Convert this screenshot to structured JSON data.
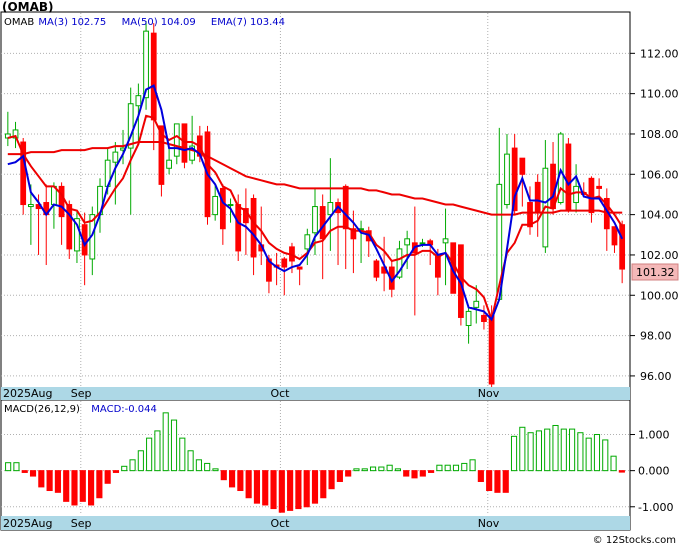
{
  "ticker_title": "(OMAB)",
  "credit": "© 12Stocks.com",
  "legend": [
    {
      "label": "OMAB",
      "value": "",
      "color": "#000000"
    },
    {
      "label": "MA(3)",
      "value": "102.75",
      "color": "#0000cc"
    },
    {
      "label": "MA(50)",
      "value": "104.09",
      "color": "#0000cc"
    },
    {
      "label": "EMA(7)",
      "value": "103.44",
      "color": "#0000cc"
    }
  ],
  "last_price_label": "101.32",
  "macd_legend": [
    {
      "label": "MACD(26,12,9)",
      "color": "#000000"
    },
    {
      "label": "MACD:-0.044",
      "color": "#0000cc"
    }
  ],
  "date_labels": [
    "2025Aug",
    "Sep",
    "Oct",
    "Nov"
  ],
  "colors": {
    "up": "#00aa00",
    "down": "#ff0000",
    "ma3": "#0000dd",
    "ema7": "#ee0000",
    "ma50": "#ee0000",
    "band": "#add8e6",
    "grid": "#b0b0b0"
  },
  "chart_data": [
    {
      "type": "candlestick",
      "ylim": [
        95.5,
        114
      ],
      "yticks": [
        96,
        98,
        100,
        102,
        104,
        106,
        108,
        110,
        112
      ],
      "ytick_labels": [
        "96.00",
        "98.00",
        "100.00",
        "102.00",
        "104.00",
        "106.00",
        "108.00",
        "110.00",
        "112.00"
      ],
      "candles": [
        [
          107.8,
          108.0,
          109.1,
          107.4
        ],
        [
          107.8,
          108.2,
          108.6,
          107.3
        ],
        [
          107.6,
          104.5,
          107.8,
          104.0
        ],
        [
          104.4,
          104.5,
          105.5,
          102.5
        ],
        [
          104.5,
          104.3,
          105.0,
          102.0
        ],
        [
          104.6,
          104.0,
          105.5,
          101.5
        ],
        [
          104.5,
          105.4,
          105.6,
          103.3
        ],
        [
          105.4,
          103.9,
          105.6,
          102.5
        ],
        [
          104.5,
          102.3,
          104.7,
          101.8
        ],
        [
          102.2,
          103.8,
          104.2,
          101.6
        ],
        [
          103.5,
          102.0,
          104.1,
          100.5
        ],
        [
          101.8,
          104.0,
          104.4,
          101.0
        ],
        [
          104.0,
          105.4,
          105.8,
          103.1
        ],
        [
          105.4,
          106.7,
          107.3,
          105.0
        ],
        [
          106.6,
          107.1,
          107.6,
          104.5
        ],
        [
          107.2,
          107.3,
          108.2,
          106.5
        ],
        [
          107.3,
          109.5,
          110.3,
          104.0
        ],
        [
          109.4,
          109.9,
          110.5,
          107.5
        ],
        [
          109.8,
          113.1,
          113.6,
          109.2
        ],
        [
          113.0,
          108.7,
          113.5,
          107.2
        ],
        [
          108.4,
          105.5,
          108.4,
          104.9
        ],
        [
          106.3,
          106.7,
          107.3,
          106.0
        ],
        [
          106.9,
          108.5,
          108.5,
          106.5
        ],
        [
          108.5,
          106.6,
          108.5,
          106.3
        ],
        [
          106.7,
          107.4,
          108.9,
          106.5
        ],
        [
          107.9,
          106.9,
          108.4,
          106.6
        ],
        [
          108.1,
          103.9,
          108.4,
          103.5
        ],
        [
          104.0,
          104.9,
          105.5,
          103.7
        ],
        [
          105.3,
          103.3,
          105.5,
          102.5
        ],
        [
          104.5,
          104.5,
          104.8,
          103.6
        ],
        [
          104.5,
          102.2,
          105.0,
          101.7
        ],
        [
          104.3,
          103.6,
          105.3,
          102.0
        ],
        [
          104.8,
          101.9,
          105.0,
          101.0
        ],
        [
          102.5,
          102.2,
          104.4,
          101.5
        ],
        [
          101.8,
          100.7,
          102.0,
          100.1
        ],
        [
          101.5,
          101.4,
          102.1,
          100.5
        ],
        [
          101.8,
          101.4,
          101.9,
          100.0
        ],
        [
          102.4,
          101.7,
          102.6,
          101.1
        ],
        [
          101.4,
          101.3,
          101.4,
          100.5
        ],
        [
          102.3,
          103.0,
          103.3,
          101.5
        ],
        [
          103.1,
          104.4,
          105.3,
          102.0
        ],
        [
          104.4,
          102.8,
          105.0,
          100.8
        ],
        [
          104.0,
          104.6,
          106.8,
          102.2
        ],
        [
          104.6,
          104.1,
          104.8,
          101.5
        ],
        [
          105.4,
          103.3,
          105.5,
          101.3
        ],
        [
          103.3,
          102.8,
          104.2,
          101.1
        ],
        [
          103.3,
          103.3,
          103.7,
          101.6
        ],
        [
          103.2,
          102.7,
          103.4,
          101.9
        ],
        [
          101.7,
          100.9,
          101.8,
          100.7
        ],
        [
          101.4,
          101.1,
          102.9,
          100.2
        ],
        [
          101.4,
          100.3,
          101.7,
          99.9
        ],
        [
          100.9,
          102.3,
          102.7,
          100.8
        ],
        [
          102.5,
          102.8,
          103.2,
          101.3
        ],
        [
          102.6,
          102.1,
          104.4,
          99.0
        ],
        [
          102.6,
          102.6,
          102.8,
          102.4
        ],
        [
          102.7,
          102.5,
          102.8,
          101.5
        ],
        [
          102.0,
          100.9,
          102.3,
          100.0
        ],
        [
          102.6,
          102.8,
          104.3,
          100.5
        ],
        [
          102.6,
          100.1,
          102.5,
          100.1
        ],
        [
          102.5,
          98.9,
          102.5,
          98.5
        ],
        [
          98.5,
          99.2,
          99.5,
          97.6
        ],
        [
          99.4,
          99.7,
          100.5,
          98.6
        ],
        [
          99.0,
          98.7,
          99.5,
          98.3
        ],
        [
          99.0,
          95.6,
          99.5,
          95.4
        ],
        [
          99.8,
          105.5,
          108.3,
          99.8
        ],
        [
          104.5,
          107.0,
          108.0,
          104.3
        ],
        [
          107.3,
          104.2,
          108.0,
          104.0
        ],
        [
          106.8,
          106.0,
          106.6,
          104.4
        ],
        [
          104.6,
          103.4,
          105.4,
          103.0
        ],
        [
          105.6,
          104.1,
          106.0,
          102.9
        ],
        [
          102.4,
          106.3,
          107.7,
          102.1
        ],
        [
          106.5,
          104.3,
          107.6,
          104.0
        ],
        [
          104.6,
          108.0,
          108.1,
          104.5
        ],
        [
          107.5,
          104.2,
          107.8,
          104.1
        ],
        [
          104.6,
          105.4,
          106.5,
          104.1
        ],
        [
          105.1,
          105.0,
          105.6,
          104.9
        ],
        [
          105.8,
          104.1,
          105.9,
          103.6
        ],
        [
          105.4,
          105.3,
          105.8,
          104.9
        ],
        [
          104.8,
          103.3,
          105.3,
          102.2
        ],
        [
          103.4,
          102.5,
          103.4,
          102.1
        ],
        [
          103.5,
          101.3,
          103.7,
          100.6
        ]
      ],
      "ma3": [
        106.5,
        106.6,
        106.9,
        105.1,
        104.6,
        104.0,
        104.5,
        104.4,
        104.0,
        103.5,
        102.5,
        103.0,
        104.0,
        105.4,
        106.3,
        107.0,
        107.9,
        108.9,
        110.2,
        110.4,
        109.2,
        107.3,
        107.3,
        107.2,
        107.3,
        107.0,
        106.0,
        105.5,
        104.6,
        104.3,
        103.6,
        103.4,
        103.0,
        102.5,
        101.7,
        101.4,
        101.2,
        101.4,
        101.5,
        102.0,
        102.9,
        103.4,
        103.9,
        104.4,
        104.0,
        103.6,
        103.1,
        103.0,
        102.3,
        101.5,
        100.7,
        101.2,
        101.8,
        102.4,
        102.5,
        102.5,
        102.0,
        102.1,
        101.2,
        100.6,
        99.4,
        99.3,
        99.2,
        98.8,
        99.8,
        102.3,
        104.9,
        105.8,
        104.7,
        104.7,
        104.6,
        104.9,
        106.2,
        105.5,
        105.9,
        104.9,
        104.8,
        104.8,
        104.2,
        103.6,
        102.8
      ],
      "ema7": [
        107.8,
        107.9,
        107.0,
        106.4,
        105.9,
        105.4,
        105.4,
        105.0,
        104.3,
        104.2,
        103.6,
        103.7,
        104.1,
        104.7,
        105.3,
        105.8,
        106.7,
        107.5,
        108.9,
        108.8,
        108.0,
        107.7,
        107.9,
        107.6,
        107.6,
        107.4,
        106.5,
        106.1,
        105.4,
        105.2,
        104.4,
        104.2,
        103.6,
        103.2,
        102.6,
        102.3,
        102.1,
        102.0,
        101.8,
        102.1,
        102.6,
        102.7,
        103.2,
        103.4,
        103.4,
        103.2,
        103.2,
        103.1,
        102.5,
        102.2,
        101.7,
        101.8,
        102.0,
        102.0,
        102.2,
        102.2,
        101.9,
        102.1,
        101.6,
        100.9,
        100.5,
        100.3,
        99.9,
        98.8,
        100.5,
        102.1,
        102.6,
        103.5,
        103.5,
        103.7,
        104.4,
        104.3,
        105.3,
        105.0,
        105.1,
        105.1,
        104.8,
        104.9,
        104.5,
        104.0,
        103.4
      ],
      "ma50": [
        107.0,
        107.0,
        107.0,
        107.1,
        107.1,
        107.1,
        107.1,
        107.2,
        107.2,
        107.2,
        107.2,
        107.3,
        107.3,
        107.3,
        107.4,
        107.4,
        107.5,
        107.6,
        107.6,
        107.6,
        107.6,
        107.5,
        107.4,
        107.3,
        107.2,
        107.1,
        106.9,
        106.7,
        106.5,
        106.3,
        106.1,
        105.9,
        105.8,
        105.7,
        105.6,
        105.5,
        105.5,
        105.4,
        105.3,
        105.3,
        105.3,
        105.3,
        105.3,
        105.3,
        105.3,
        105.3,
        105.3,
        105.2,
        105.2,
        105.1,
        105.0,
        105.0,
        104.9,
        104.8,
        104.8,
        104.7,
        104.6,
        104.5,
        104.5,
        104.4,
        104.3,
        104.2,
        104.1,
        104.0,
        104.0,
        104.0,
        104.0,
        104.1,
        104.1,
        104.1,
        104.1,
        104.1,
        104.2,
        104.2,
        104.2,
        104.2,
        104.2,
        104.2,
        104.1,
        104.1,
        104.1
      ]
    },
    {
      "type": "bar",
      "title": "MACD(26,12,9)",
      "ylim": [
        -1.2,
        1.9
      ],
      "yticks": [
        -1.0,
        0.0,
        1.0
      ],
      "ytick_labels": [
        "-1.000",
        "0.000",
        "1.000"
      ],
      "values": [
        0.22,
        0.22,
        -0.05,
        -0.15,
        -0.45,
        -0.55,
        -0.6,
        -0.85,
        -0.95,
        -0.85,
        -0.95,
        -0.75,
        -0.35,
        -0.05,
        0.12,
        0.3,
        0.55,
        0.9,
        1.1,
        1.6,
        1.4,
        0.9,
        0.55,
        0.3,
        0.2,
        0.05,
        -0.25,
        -0.45,
        -0.55,
        -0.75,
        -0.9,
        -0.95,
        -1.05,
        -1.15,
        -1.1,
        -1.05,
        -1.0,
        -0.9,
        -0.75,
        -0.5,
        -0.3,
        -0.15,
        0.05,
        0.05,
        0.1,
        0.1,
        0.15,
        0.05,
        -0.15,
        -0.2,
        -0.15,
        -0.05,
        0.15,
        0.15,
        0.15,
        0.2,
        0.3,
        -0.3,
        -0.55,
        -0.6,
        -0.6,
        0.95,
        1.2,
        1.05,
        1.1,
        1.15,
        1.25,
        1.15,
        1.15,
        1.05,
        0.9,
        1.0,
        0.85,
        0.4,
        -0.04
      ]
    }
  ]
}
